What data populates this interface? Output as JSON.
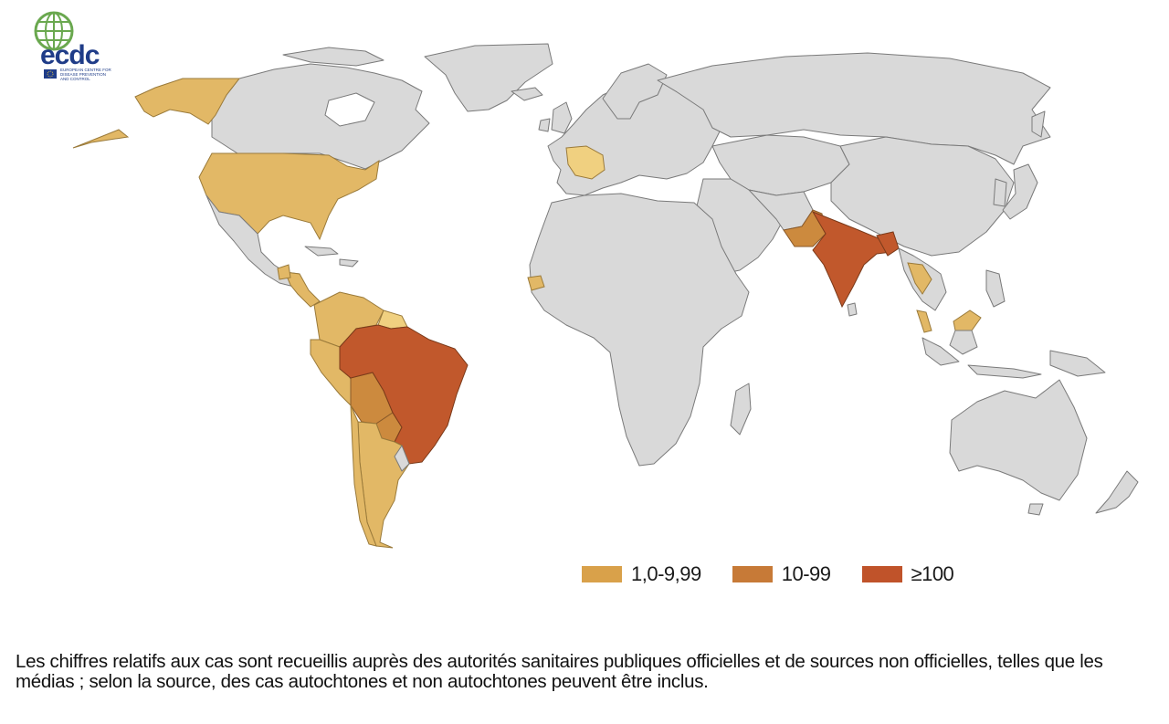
{
  "logo": {
    "wordmark": "ecdc",
    "tagline_1": "EUROPEAN CENTRE FOR",
    "tagline_2": "DISEASE PREVENTION",
    "tagline_3": "AND CONTROL",
    "colors": {
      "green": "#6aa84f",
      "navy": "#1f3c88",
      "eu_flag": "#1f3c88"
    }
  },
  "legend": {
    "items": [
      {
        "label": "1,0-9,99",
        "color": "#d9a14a"
      },
      {
        "label": "10-99",
        "color": "#c77a37"
      },
      {
        "label": "≥100",
        "color": "#c0532a"
      }
    ]
  },
  "footnote": "Les chiffres relatifs aux cas sont recueillis auprès des autorités sanitaires publiques officielles et de sources non officielles, telles que les médias ; selon la source, des cas autochtones et non autochtones peuvent être inclus.",
  "map_colors": {
    "no_data": "#d9d9d9",
    "low": "#e2b866",
    "medium": "#cc8a3e",
    "high": "#c1582c"
  }
}
